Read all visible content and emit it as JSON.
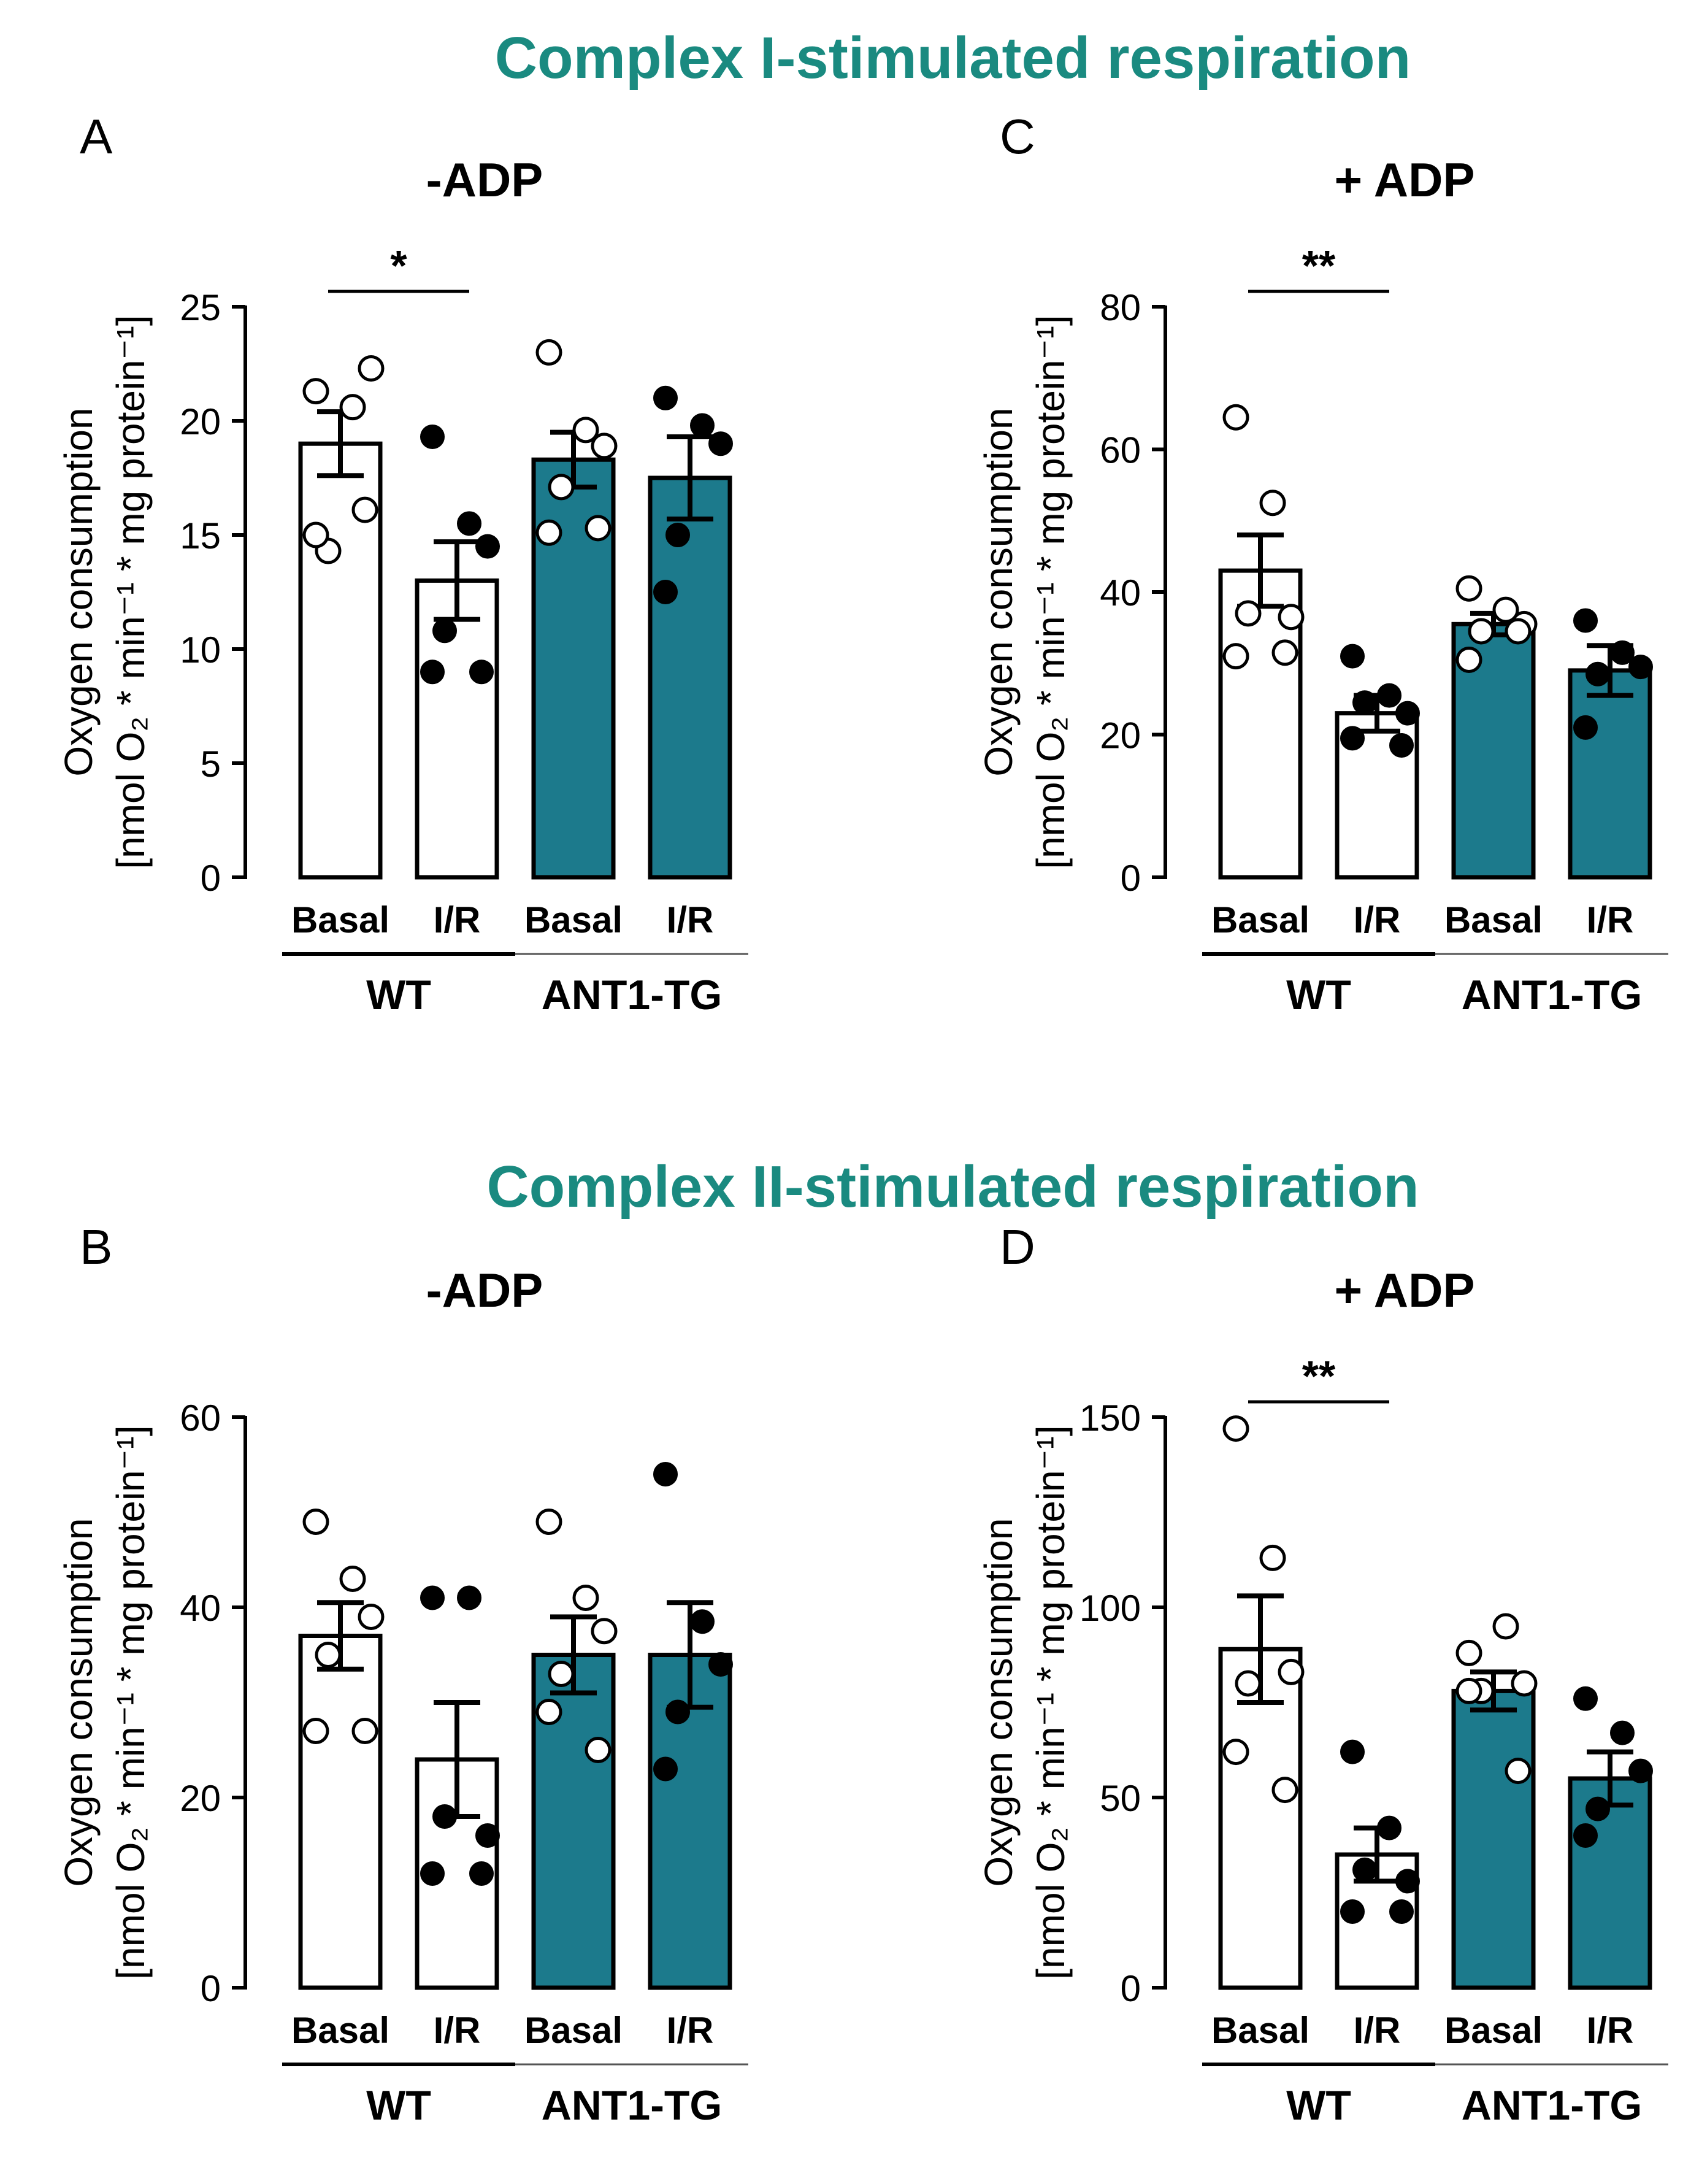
{
  "titles": {
    "complex1": "Complex I-stimulated respiration",
    "complex2": "Complex II-stimulated respiration"
  },
  "colors": {
    "teal": "#1c7a8c",
    "title_teal": "#1a8a80",
    "black": "#000000"
  },
  "common": {
    "ylabel_line1": "Oxygen consumption",
    "ylabel_line2": "[nmol O₂ * min⁻¹ * mg protein⁻¹]",
    "bar_labels": [
      "Basal",
      "I/R",
      "Basal",
      "I/R"
    ],
    "groups": [
      "WT",
      "ANT1-TG"
    ]
  },
  "chart_data": [
    {
      "panel": "A",
      "type": "bar",
      "title": "-ADP",
      "categories": [
        "WT Basal",
        "WT I/R",
        "ANT1-TG Basal",
        "ANT1-TG I/R"
      ],
      "ylim": [
        0,
        25
      ],
      "yticks": [
        0,
        5,
        10,
        15,
        20,
        25
      ],
      "values": [
        19.0,
        13.0,
        18.3,
        17.5
      ],
      "sem": [
        1.4,
        1.7,
        1.2,
        1.8
      ],
      "points": [
        [
          21.3,
          20.6,
          22.3,
          14.3,
          15.0,
          16.1
        ],
        [
          19.3,
          15.5,
          14.5,
          10.8,
          9.0,
          9.0
        ],
        [
          23.0,
          19.6,
          18.9,
          17.1,
          15.1,
          15.3
        ],
        [
          21.0,
          19.8,
          19.0,
          15.0,
          12.5
        ]
      ],
      "significance": {
        "between": [
          0,
          1
        ],
        "label": "*"
      }
    },
    {
      "panel": "C",
      "type": "bar",
      "title": "+ ADP",
      "categories": [
        "WT Basal",
        "WT I/R",
        "ANT1-TG Basal",
        "ANT1-TG I/R"
      ],
      "ylim": [
        0,
        80
      ],
      "yticks": [
        0,
        20,
        40,
        60,
        80
      ],
      "values": [
        43.0,
        23.0,
        35.5,
        29.0
      ],
      "sem": [
        5.0,
        2.5,
        1.5,
        3.5
      ],
      "points": [
        [
          64.5,
          52.5,
          36.5,
          37.0,
          31.0,
          31.5
        ],
        [
          31.0,
          25.5,
          23.0,
          24.5,
          19.5,
          18.5
        ],
        [
          40.5,
          37.5,
          35.5,
          34.5,
          30.5,
          34.5
        ],
        [
          36.0,
          31.5,
          29.5,
          28.5,
          21.0
        ]
      ],
      "significance": {
        "between": [
          0,
          1
        ],
        "label": "**"
      }
    },
    {
      "panel": "B",
      "type": "bar",
      "title": "-ADP",
      "categories": [
        "WT Basal",
        "WT I/R",
        "ANT1-TG Basal",
        "ANT1-TG I/R"
      ],
      "ylim": [
        0,
        60
      ],
      "yticks": [
        0,
        20,
        40,
        60
      ],
      "values": [
        37.0,
        24.0,
        35.0,
        35.0
      ],
      "sem": [
        3.5,
        6.0,
        4.0,
        5.5
      ],
      "points": [
        [
          49.0,
          43.0,
          39.0,
          35.0,
          27.0,
          27.0
        ],
        [
          41.0,
          41.0,
          16.0,
          18.0,
          12.0,
          12.0
        ],
        [
          49.0,
          41.0,
          37.5,
          33.0,
          29.0,
          25.0
        ],
        [
          54.0,
          38.5,
          34.0,
          29.0,
          23.0
        ]
      ],
      "significance": null
    },
    {
      "panel": "D",
      "type": "bar",
      "title": "+ ADP",
      "categories": [
        "WT Basal",
        "WT I/R",
        "ANT1-TG Basal",
        "ANT1-TG I/R"
      ],
      "ylim": [
        0,
        150
      ],
      "yticks": [
        0,
        50,
        100,
        150
      ],
      "values": [
        89.0,
        35.0,
        78.0,
        55.0
      ],
      "sem": [
        14.0,
        7.0,
        5.0,
        7.0
      ],
      "points": [
        [
          147.0,
          113.0,
          83.0,
          80.0,
          62.0,
          52.0
        ],
        [
          62.0,
          42.0,
          28.0,
          31.0,
          20.0,
          20.0
        ],
        [
          88.0,
          95.0,
          80.0,
          78.0,
          78.0,
          57.0
        ],
        [
          76.0,
          67.0,
          57.0,
          47.0,
          40.0
        ]
      ],
      "significance": {
        "between": [
          0,
          1
        ],
        "label": "**"
      }
    }
  ],
  "panel_labels": [
    "A",
    "C",
    "B",
    "D"
  ]
}
